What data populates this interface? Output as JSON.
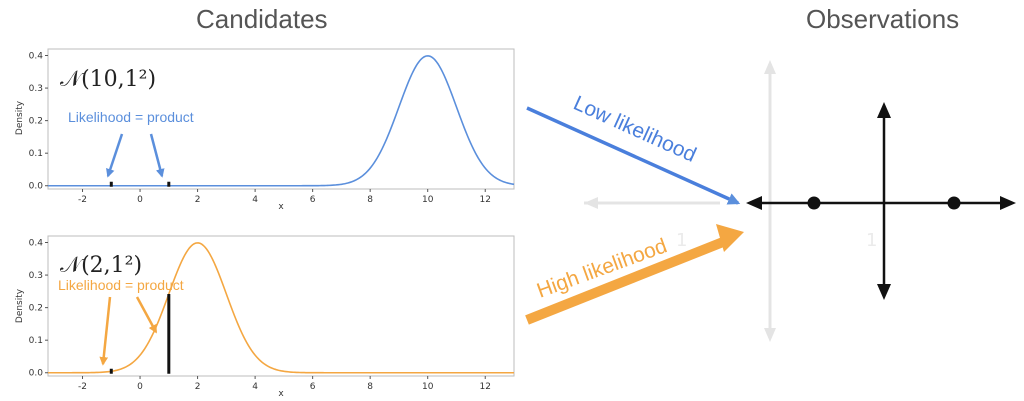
{
  "headings": {
    "left": "Candidates",
    "right": "Observations"
  },
  "colors": {
    "blue": "#5b8fdc",
    "orange": "#f4a742",
    "dark": "#111111",
    "faint": "#e4e4e4"
  },
  "observations_x": [
    -1,
    1
  ],
  "chart_data": [
    {
      "type": "line",
      "distribution_label": "𝒩(10,1²)",
      "annotation": "Likelihood = product",
      "xlabel": "x",
      "ylabel": "Density",
      "xlim": [
        -3.2,
        13
      ],
      "ylim": [
        -0.01,
        0.42
      ],
      "xticks": [
        -2,
        0,
        2,
        4,
        6,
        8,
        10,
        12
      ],
      "yticks": [
        0.0,
        0.1,
        0.2,
        0.3,
        0.4
      ],
      "series": [
        {
          "mean": 10,
          "sd": 1,
          "color": "#5b8fdc"
        }
      ],
      "observation_density": [
        0.0,
        0.0
      ]
    },
    {
      "type": "line",
      "distribution_label": "𝒩(2,1²)",
      "annotation": "Likelihood = product",
      "xlabel": "x",
      "ylabel": "Density",
      "xlim": [
        -3.2,
        13
      ],
      "ylim": [
        -0.01,
        0.42
      ],
      "xticks": [
        -2,
        0,
        2,
        4,
        6,
        8,
        10,
        12
      ],
      "yticks": [
        0.0,
        0.1,
        0.2,
        0.3,
        0.4
      ],
      "series": [
        {
          "mean": 2,
          "sd": 1,
          "color": "#f4a742"
        }
      ],
      "observation_density": [
        0.004,
        0.242
      ]
    }
  ],
  "arrows": {
    "low": "Low likelihood",
    "high": "High likelihood"
  }
}
